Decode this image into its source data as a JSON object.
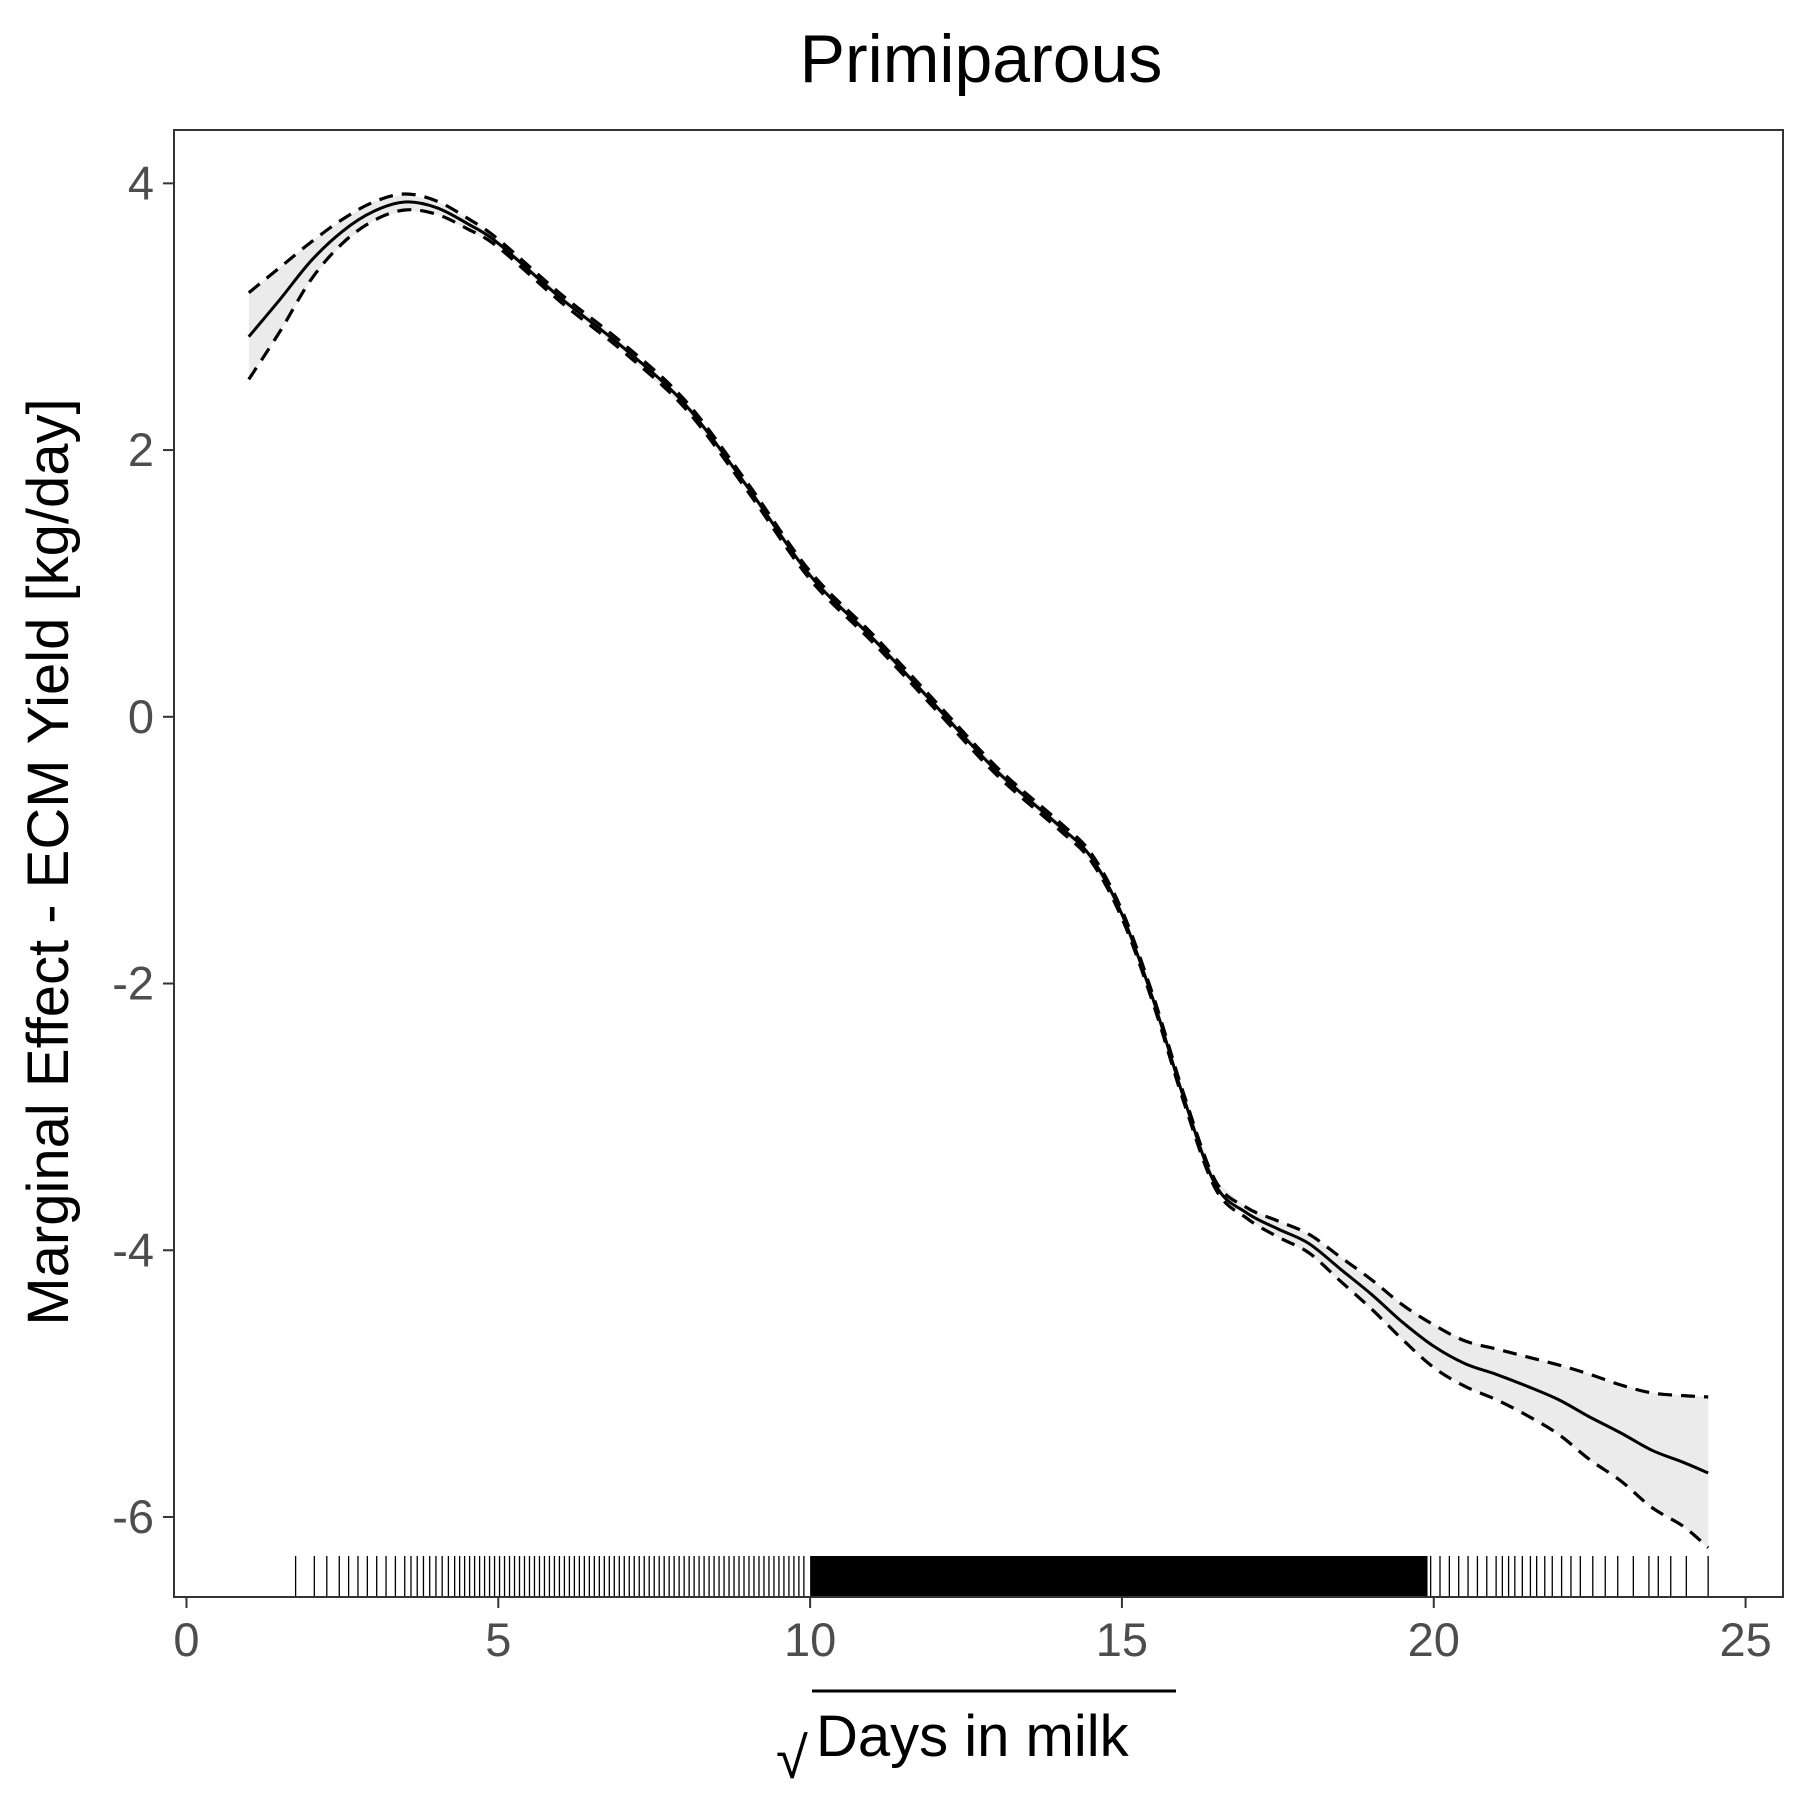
{
  "chart_data": {
    "type": "line",
    "title": "Primiparous",
    "xlabel": "Days in milk",
    "xlabel_prefix": "√",
    "ylabel": "Marginal Effect - ECM Yield [kg/day]",
    "xlim": [
      -0.2,
      25.6
    ],
    "ylim": [
      -6.6,
      4.4
    ],
    "xticks": [
      0,
      5,
      10,
      15,
      20,
      25
    ],
    "xtick_labels": [
      "0",
      "5",
      "10",
      "15",
      "20",
      "25"
    ],
    "yticks": [
      -6,
      -4,
      -2,
      0,
      2,
      4
    ],
    "ytick_labels": [
      "-6",
      "-4",
      "-2",
      "0",
      "2",
      "4"
    ],
    "grid": false,
    "legend": "none",
    "colors": {
      "line": "#000000",
      "band": "#ebebeb",
      "axis": "#333333"
    },
    "series": [
      {
        "style": "solid",
        "x": [
          1.0,
          1.5,
          2.0,
          2.5,
          3.0,
          3.5,
          4.0,
          4.5,
          5.0,
          6.0,
          7.0,
          8.0,
          9.0,
          10.0,
          11.0,
          12.0,
          13.0,
          14.0,
          14.5,
          15.0,
          15.5,
          16.0,
          16.5,
          17.0,
          17.5,
          18.0,
          18.5,
          19.0,
          19.5,
          20.0,
          20.5,
          21.0,
          21.5,
          22.0,
          22.5,
          23.0,
          23.5,
          24.0,
          24.4
        ],
        "y": [
          2.85,
          3.13,
          3.42,
          3.64,
          3.79,
          3.86,
          3.82,
          3.7,
          3.55,
          3.14,
          2.77,
          2.34,
          1.72,
          1.06,
          0.59,
          0.09,
          -0.41,
          -0.82,
          -1.05,
          -1.48,
          -2.12,
          -2.87,
          -3.51,
          -3.72,
          -3.84,
          -3.95,
          -4.14,
          -4.33,
          -4.54,
          -4.72,
          -4.85,
          -4.93,
          -5.02,
          -5.12,
          -5.25,
          -5.37,
          -5.5,
          -5.59,
          -5.67
        ]
      },
      {
        "style": "dashed",
        "x": [
          1.0,
          1.5,
          2.0,
          2.5,
          3.0,
          3.5,
          4.0,
          4.5,
          5.0,
          6.0,
          7.0,
          8.0,
          9.0,
          10.0,
          11.0,
          12.0,
          13.0,
          14.0,
          14.5,
          15.0,
          15.5,
          16.0,
          16.5,
          17.0,
          17.5,
          18.0,
          18.5,
          19.0,
          19.5,
          20.0,
          20.5,
          21.0,
          21.5,
          22.0,
          22.5,
          23.0,
          23.5,
          24.0,
          24.4
        ],
        "y": [
          3.18,
          3.37,
          3.56,
          3.73,
          3.86,
          3.92,
          3.87,
          3.74,
          3.58,
          3.17,
          2.8,
          2.37,
          1.75,
          1.09,
          0.62,
          0.12,
          -0.38,
          -0.79,
          -1.02,
          -1.45,
          -2.09,
          -2.84,
          -3.48,
          -3.68,
          -3.78,
          -3.88,
          -4.05,
          -4.22,
          -4.41,
          -4.56,
          -4.68,
          -4.74,
          -4.8,
          -4.86,
          -4.93,
          -5.01,
          -5.07,
          -5.09,
          -5.1
        ]
      },
      {
        "style": "dashed",
        "x": [
          1.0,
          1.5,
          2.0,
          2.5,
          3.0,
          3.5,
          4.0,
          4.5,
          5.0,
          6.0,
          7.0,
          8.0,
          9.0,
          10.0,
          11.0,
          12.0,
          13.0,
          14.0,
          14.5,
          15.0,
          15.5,
          16.0,
          16.5,
          17.0,
          17.5,
          18.0,
          18.5,
          19.0,
          19.5,
          20.0,
          20.5,
          21.0,
          21.5,
          22.0,
          22.5,
          23.0,
          23.5,
          24.0,
          24.4
        ],
        "y": [
          2.53,
          2.89,
          3.28,
          3.55,
          3.72,
          3.8,
          3.77,
          3.66,
          3.52,
          3.11,
          2.74,
          2.31,
          1.69,
          1.03,
          0.56,
          0.06,
          -0.44,
          -0.85,
          -1.08,
          -1.51,
          -2.15,
          -2.9,
          -3.54,
          -3.76,
          -3.9,
          -4.02,
          -4.23,
          -4.44,
          -4.67,
          -4.88,
          -5.02,
          -5.12,
          -5.24,
          -5.38,
          -5.57,
          -5.73,
          -5.93,
          -6.07,
          -6.23
        ]
      }
    ],
    "rug": {
      "sparse": [
        1.75,
        2.05,
        2.25,
        2.45,
        2.6,
        2.75,
        2.9,
        3.05,
        3.2,
        3.35,
        3.5,
        3.6,
        3.7,
        3.8,
        3.9,
        4.0,
        4.1,
        4.2,
        4.3,
        4.38,
        4.46,
        4.54,
        4.62,
        4.7,
        4.78,
        4.86,
        4.94,
        5.02,
        5.1,
        5.18,
        5.26,
        5.34,
        5.42,
        5.5,
        5.58,
        5.66,
        5.74,
        5.82,
        5.9,
        5.98,
        6.06,
        6.14,
        6.22,
        6.3,
        6.38,
        6.46,
        6.54,
        6.62,
        6.7,
        6.78,
        6.86,
        6.94,
        7.02,
        7.1,
        7.18,
        7.26,
        7.34,
        7.42,
        7.5,
        7.58,
        7.66,
        7.74,
        7.82,
        7.9,
        7.98,
        8.06,
        8.14,
        8.22,
        8.3,
        8.38,
        8.46,
        8.54,
        8.62,
        8.7,
        8.78,
        8.86,
        8.94,
        9.02,
        9.1,
        9.18,
        9.26,
        9.34,
        9.42,
        9.5,
        9.58,
        9.66,
        9.74,
        9.82,
        9.9,
        19.95,
        20.1,
        20.25,
        20.4,
        20.55,
        20.7,
        20.85,
        21.0,
        21.1,
        21.2,
        21.3,
        21.42,
        21.55,
        21.65,
        21.78,
        21.9,
        22.05,
        22.2,
        22.35,
        22.55,
        22.75,
        22.95,
        23.2,
        23.45,
        23.6,
        23.8,
        24.05,
        24.4
      ],
      "dense_from": 10.0,
      "dense_to": 19.9
    }
  }
}
